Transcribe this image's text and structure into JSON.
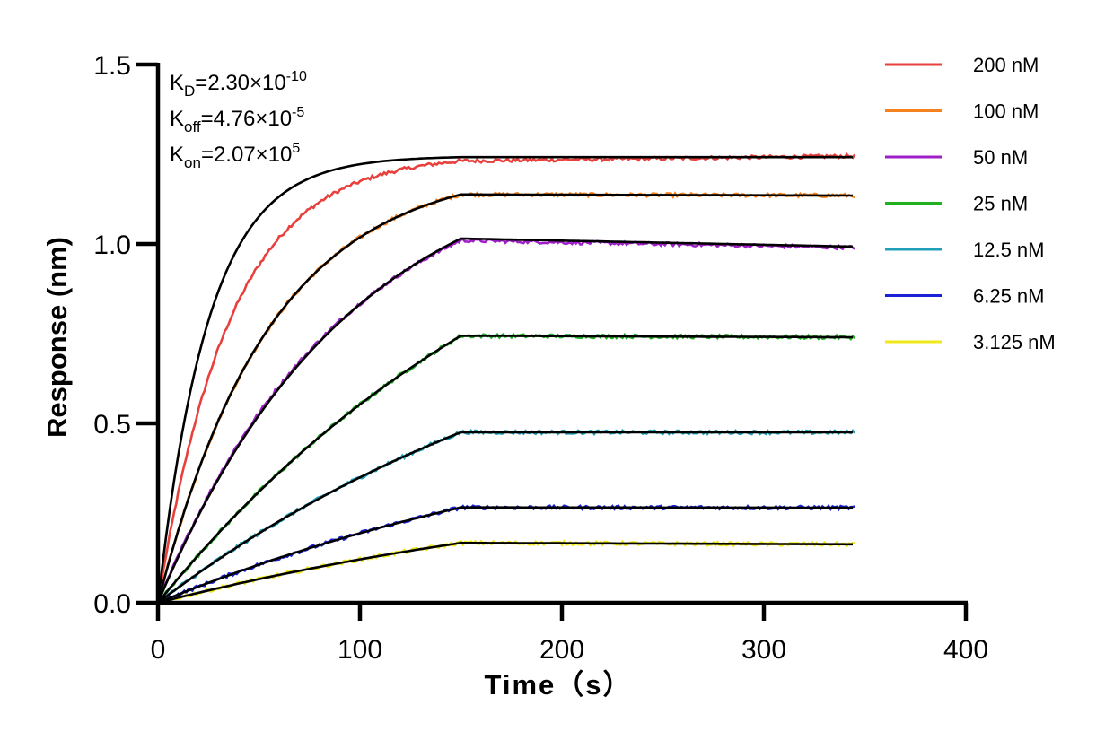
{
  "chart_data": {
    "type": "line",
    "title": "",
    "xlabel": "Time（s）",
    "ylabel": "Response (nm)",
    "xlim": [
      0,
      400
    ],
    "ylim": [
      0,
      1.5
    ],
    "xticks": [
      "0",
      "100",
      "200",
      "300",
      "400"
    ],
    "yticks": [
      "0.0",
      "0.5",
      "1.0",
      "1.5"
    ],
    "grid": false,
    "legend_position": "right",
    "association_end": 150,
    "dissociation_end": 345,
    "annotations": [
      {
        "symbol": "K",
        "sub": "D",
        "text": "=2.30×10",
        "sup": "-10"
      },
      {
        "symbol": "K",
        "sub": "off",
        "text": "=4.76×10",
        "sup": "-5"
      },
      {
        "symbol": "K",
        "sub": "on",
        "text": "=2.07×10",
        "sup": "5"
      }
    ],
    "fit_color": "#000000",
    "series": [
      {
        "name": "200 nM",
        "color": "#e8403c",
        "plateau": 1.25,
        "k_obs": 0.028,
        "fit_plateau": 1.245,
        "fit_k": 0.04,
        "end": 1.245
      },
      {
        "name": "100 nM",
        "color": "#f5821f",
        "plateau": 1.22,
        "k_obs": 0.018,
        "fit_plateau": 1.22,
        "fit_k": 0.018,
        "end": 1.135
      },
      {
        "name": "50 nM",
        "color": "#a020c8",
        "plateau": 1.25,
        "k_obs": 0.011,
        "fit_plateau": 1.28,
        "fit_k": 0.0105,
        "end": 0.99
      },
      {
        "name": "25 nM",
        "color": "#20b020",
        "plateau": 1.45,
        "k_obs": 0.0048,
        "fit_plateau": 1.45,
        "fit_k": 0.0048,
        "end": 0.74
      },
      {
        "name": "12.5 nM",
        "color": "#1fa0b8",
        "plateau": 1.0,
        "k_obs": 0.0043,
        "fit_plateau": 1.0,
        "fit_k": 0.0043,
        "end": 0.475
      },
      {
        "name": "6.25 nM",
        "color": "#1a22d8",
        "plateau": 0.6,
        "k_obs": 0.0039,
        "fit_plateau": 0.6,
        "fit_k": 0.0039,
        "end": 0.265
      },
      {
        "name": "3.125 nM",
        "color": "#f0e81a",
        "plateau": 0.4,
        "k_obs": 0.0036,
        "fit_plateau": 0.4,
        "fit_k": 0.0036,
        "end": 0.163
      }
    ]
  }
}
